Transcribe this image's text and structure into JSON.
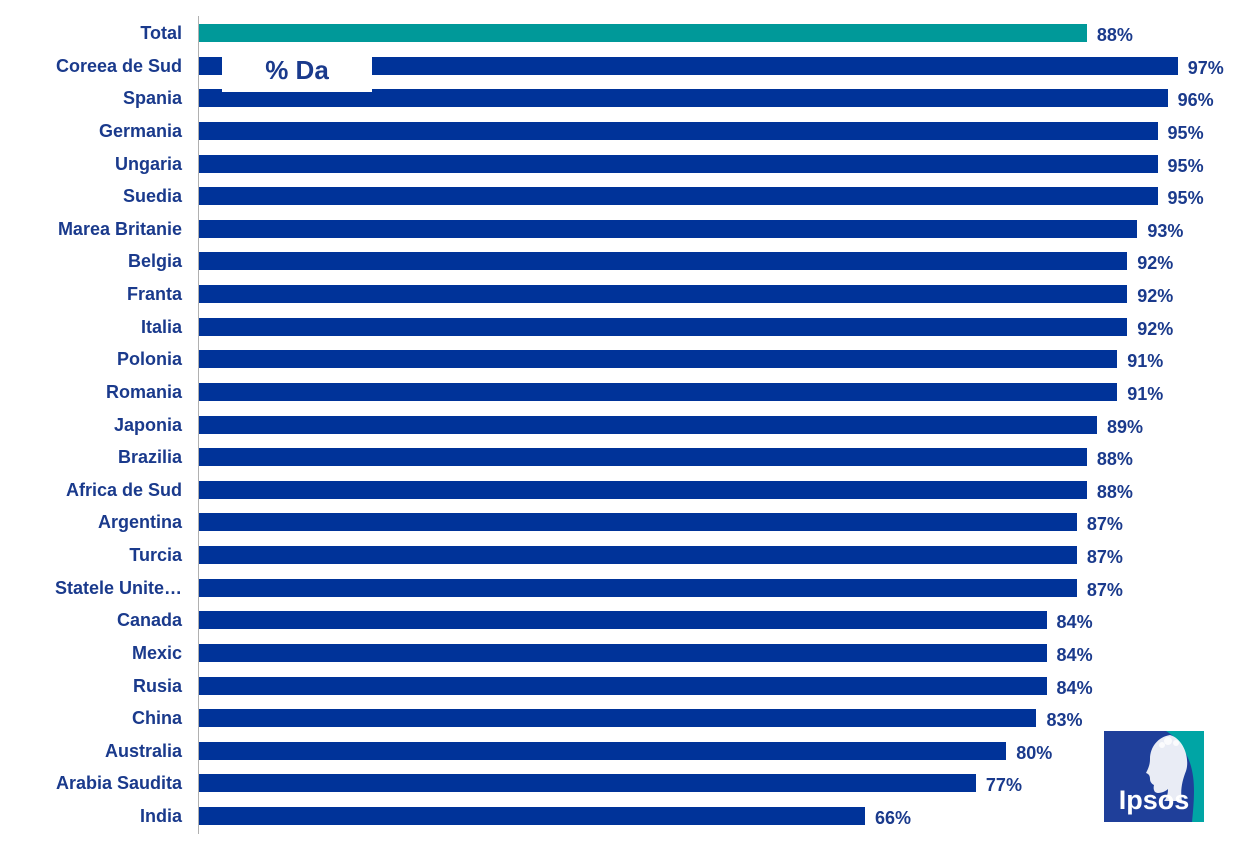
{
  "chart_data": {
    "type": "bar",
    "orientation": "horizontal",
    "categories": [
      "Total",
      "Coreea de Sud",
      "Spania",
      "Germania",
      "Ungaria",
      "Suedia",
      "Marea Britanie",
      "Belgia",
      "Franta",
      "Italia",
      "Polonia",
      "Romania",
      "Japonia",
      "Brazilia",
      "Africa de Sud",
      "Argentina",
      "Turcia",
      "Statele Unite…",
      "Canada",
      "Mexic",
      "Rusia",
      "China",
      "Australia",
      "Arabia Saudita",
      "India"
    ],
    "values": [
      88,
      97,
      96,
      95,
      95,
      95,
      93,
      92,
      92,
      92,
      91,
      91,
      89,
      88,
      88,
      87,
      87,
      87,
      84,
      84,
      84,
      83,
      80,
      77,
      66
    ],
    "value_labels": [
      "88%",
      "97%",
      "96%",
      "95%",
      "95%",
      "95%",
      "93%",
      "92%",
      "92%",
      "92%",
      "91%",
      "91%",
      "89%",
      "88%",
      "88%",
      "87%",
      "87%",
      "87%",
      "84%",
      "84%",
      "84%",
      "83%",
      "80%",
      "77%",
      "66%"
    ],
    "legend_label": "% Da",
    "xlim": [
      0,
      100
    ],
    "grid": false,
    "highlight_category": "Total",
    "colors": {
      "bar": "#003399",
      "highlight": "#009999",
      "label": "#1a3a8c"
    }
  },
  "logo": {
    "text": "Ipsos",
    "icon": "ipsos-head-logo-icon",
    "colors": [
      "#1f3f9a",
      "#00a5a5"
    ]
  }
}
